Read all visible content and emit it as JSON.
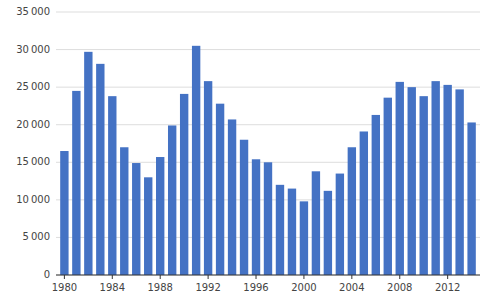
{
  "chart_data": {
    "type": "bar",
    "x": [
      1980,
      1981,
      1982,
      1983,
      1984,
      1985,
      1986,
      1987,
      1988,
      1989,
      1990,
      1991,
      1992,
      1993,
      1994,
      1995,
      1996,
      1997,
      1998,
      1999,
      2000,
      2001,
      2002,
      2003,
      2004,
      2005,
      2006,
      2007,
      2008,
      2009,
      2010,
      2011,
      2012,
      2013,
      2014
    ],
    "values": [
      16500,
      24500,
      29700,
      28100,
      23800,
      17000,
      14900,
      13000,
      15700,
      19900,
      24100,
      30500,
      25800,
      22800,
      20700,
      18000,
      15400,
      15000,
      12000,
      11500,
      9800,
      13800,
      11200,
      13500,
      17000,
      19100,
      21300,
      23600,
      25700,
      25000,
      23800,
      25800,
      25300,
      24700,
      20300
    ],
    "color": "#4472C4",
    "xlim": [
      1979.3,
      2014.7
    ],
    "xticks": [
      1980,
      1984,
      1988,
      1992,
      1996,
      2000,
      2004,
      2008,
      2012
    ],
    "ylim": [
      0,
      35000
    ],
    "yticks": [
      0,
      {
        "value": 5000,
        "label": "5 000"
      },
      {
        "value": 10000,
        "label": "10 000"
      },
      {
        "value": 15000,
        "label": "15 000"
      },
      {
        "value": 20000,
        "label": "20 000"
      },
      {
        "value": 25000,
        "label": "25 000"
      },
      {
        "value": 30000,
        "label": "30 000"
      },
      {
        "value": 35000,
        "label": "35 000"
      }
    ],
    "grid": true
  }
}
